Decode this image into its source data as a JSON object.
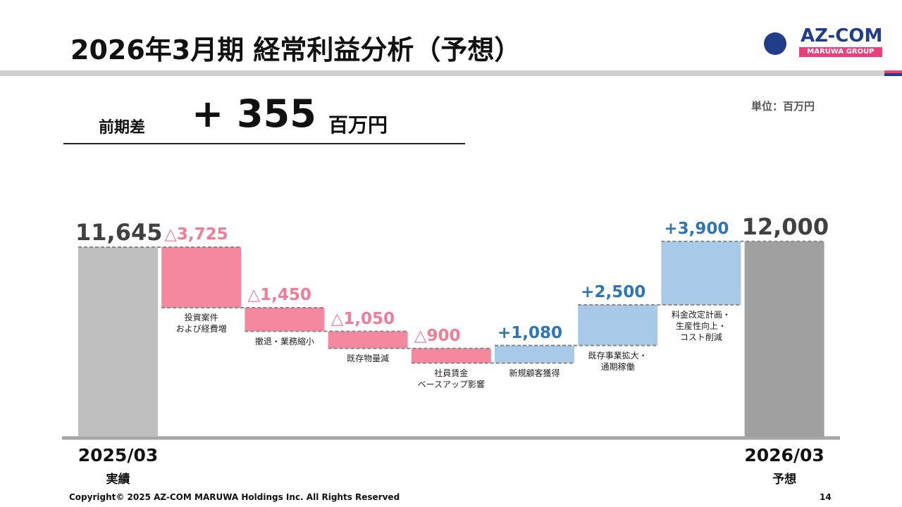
{
  "header": {
    "title": "2026年3月期 経常利益分析（予想）",
    "logo": "AZ-COM",
    "logo_sub": "MARUWA GROUP"
  },
  "summary": {
    "label": "前期差",
    "difference": "+ 355",
    "unit": "百万円"
  },
  "unit_note": "単位：百万円",
  "footer": {
    "copyright": "Copyright© 2025 AZ-COM MARUWA Holdings Inc. All Rights Reserved",
    "page": "14"
  },
  "chart_data": {
    "type": "waterfall",
    "categories": [
      "2025/03",
      "投資案件\nおよび経費増",
      "撤退・業務縮小",
      "既存物量減",
      "社員賃金\nベースアップ影響",
      "新規顧客獲得",
      "既存事業拡大・\n通期稼働",
      "料金改定計画・\n生産性向上・\nコスト削減",
      "2026/03"
    ],
    "category_notes": [
      "実績",
      null,
      null,
      null,
      null,
      null,
      null,
      null,
      "予想"
    ],
    "values": [
      11645,
      -3725,
      -1450,
      -1050,
      -900,
      1080,
      2500,
      3900,
      12000
    ],
    "value_labels": [
      "11,645",
      "△3,725",
      "△1,450",
      "△1,050",
      "△900",
      "+1,080",
      "+2,500",
      "+3,900",
      "12,000"
    ],
    "colors": [
      "#bfbfbf",
      "#f4889f",
      "#f4889f",
      "#f4889f",
      "#f4889f",
      "#a9c9e8",
      "#a9c9e8",
      "#a9c9e8",
      "#a0a0a0"
    ],
    "label_colors": [
      "#404040",
      "#ef7d98",
      "#ef7d98",
      "#ef7d98",
      "#ef7d98",
      "#2e75b6",
      "#2e75b6",
      "#2e75b6",
      "#404040"
    ]
  }
}
